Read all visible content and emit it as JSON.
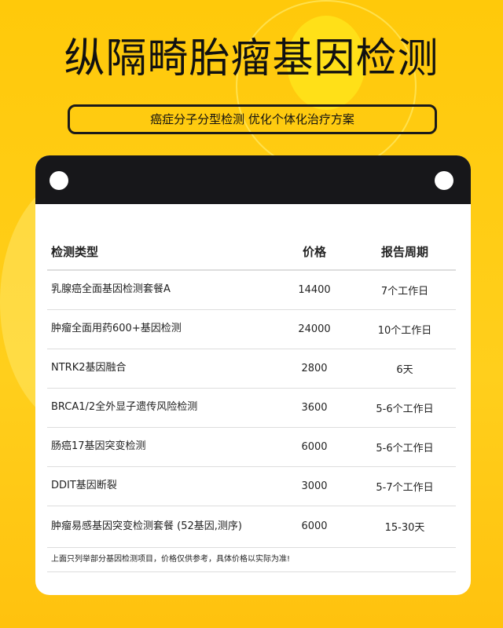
{
  "title": "纵隔畸胎瘤基因检测",
  "subtitle": "癌症分子分型检测 优化个体化治疗方案",
  "table": {
    "headers": [
      "检测类型",
      "价格",
      "报告周期"
    ],
    "rows": [
      {
        "name": "乳腺癌全面基因检测套餐A",
        "price": "14400",
        "period": "7个工作日"
      },
      {
        "name": "肿瘤全面用药600+基因检测",
        "price": "24000",
        "period": "10个工作日"
      },
      {
        "name": "NTRK2基因融合",
        "price": "2800",
        "period": "6天"
      },
      {
        "name": "BRCA1/2全外显子遗传风险检测",
        "price": "3600",
        "period": "5-6个工作日"
      },
      {
        "name": "肠癌17基因突变检测",
        "price": "6000",
        "period": "5-6个工作日"
      },
      {
        "name": "DDIT基因断裂",
        "price": "3000",
        "period": "5-7个工作日"
      },
      {
        "name": "肿瘤易感基因突变检测套餐 (52基因,测序)",
        "price": "6000",
        "period": "15-30天"
      }
    ],
    "note": "上面只列举部分基因检测项目，价格仅供参考，具体价格以实际为准!"
  }
}
